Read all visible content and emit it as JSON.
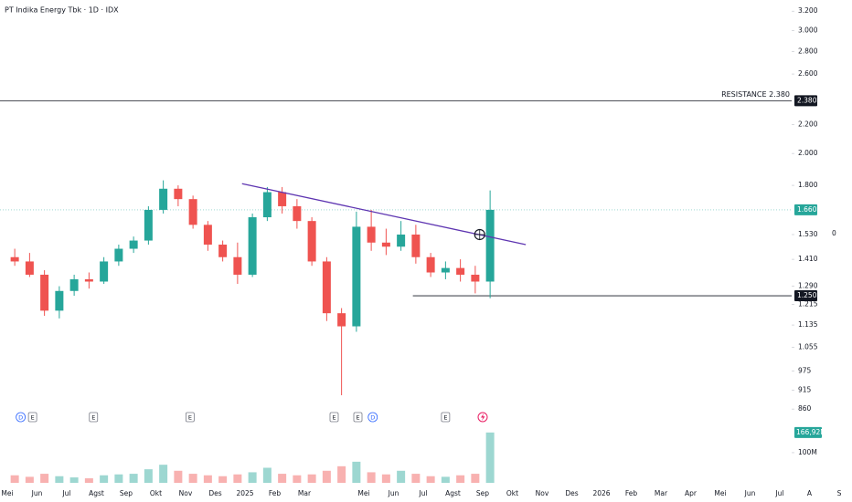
{
  "chart_data": {
    "type": "candlestick",
    "title": "PT Indika Energy Tbk · 1D · IDX",
    "categories": [
      "Mei",
      null,
      "Jun",
      null,
      "Jul",
      null,
      "Agst",
      null,
      "Sep",
      null,
      "Okt",
      null,
      "Nov",
      null,
      "Des",
      null,
      "2025",
      null,
      "Feb",
      null,
      "Mar",
      null,
      null,
      null,
      "Mei",
      null,
      "Jun",
      null,
      "Jul",
      null,
      "Agst",
      null,
      "Sep",
      null,
      "Okt",
      null,
      "Nov",
      null,
      "Des",
      null,
      "2026",
      null,
      "Feb",
      null,
      "Mar",
      null,
      "Apr",
      null,
      "Mei",
      null,
      "Jun",
      null,
      "Jul",
      null,
      "A",
      null,
      "S",
      null
    ],
    "open": [
      1420,
      1400,
      1340,
      1190,
      1270,
      1320,
      1310,
      1400,
      1460,
      1500,
      1660,
      1780,
      1720,
      1580,
      1480,
      1420,
      1340,
      1620,
      1760,
      1680,
      1600,
      1400,
      1180,
      1130,
      1570,
      1490,
      1470,
      1530,
      1420,
      1350,
      1370,
      1340,
      1310,
      null,
      null,
      null,
      null,
      null,
      null,
      null,
      null,
      null,
      null,
      null,
      null,
      null,
      null,
      null,
      null,
      null,
      null,
      null,
      null,
      null,
      null,
      null,
      null,
      null
    ],
    "high": [
      1460,
      1440,
      1360,
      1290,
      1340,
      1350,
      1420,
      1480,
      1520,
      1680,
      1830,
      1800,
      1740,
      1600,
      1500,
      1490,
      1640,
      1790,
      1790,
      1720,
      1620,
      1420,
      1200,
      1650,
      1660,
      1560,
      1600,
      1580,
      1440,
      1400,
      1410,
      1380,
      1770,
      null,
      null,
      null,
      null,
      null,
      null,
      null,
      null,
      null,
      null,
      null,
      null,
      null,
      null,
      null,
      null,
      null,
      null,
      null,
      null,
      null,
      null,
      null,
      null,
      null
    ],
    "low": [
      1380,
      1330,
      1170,
      1160,
      1250,
      1280,
      1300,
      1380,
      1440,
      1480,
      1640,
      1680,
      1560,
      1450,
      1400,
      1300,
      1330,
      1600,
      1640,
      1560,
      1380,
      1150,
      900,
      1110,
      1450,
      1430,
      1450,
      1390,
      1330,
      1320,
      1310,
      1260,
      1240,
      null,
      null,
      null,
      null,
      null,
      null,
      null,
      null,
      null,
      null,
      null,
      null,
      null,
      null,
      null,
      null,
      null,
      null,
      null,
      null,
      null,
      null,
      null,
      null,
      null
    ],
    "close": [
      1400,
      1340,
      1190,
      1270,
      1320,
      1310,
      1400,
      1460,
      1500,
      1660,
      1780,
      1720,
      1580,
      1480,
      1420,
      1340,
      1620,
      1760,
      1680,
      1600,
      1400,
      1180,
      1130,
      1570,
      1490,
      1470,
      1530,
      1420,
      1350,
      1370,
      1340,
      1310,
      1660,
      null,
      null,
      null,
      null,
      null,
      null,
      null,
      null,
      null,
      null,
      null,
      null,
      null,
      null,
      null,
      null,
      null,
      null,
      null,
      null,
      null,
      null,
      null,
      null,
      null
    ],
    "volume": [
      25000000,
      20000000,
      30000000,
      22000000,
      18000000,
      15000000,
      25000000,
      28000000,
      30000000,
      45000000,
      60000000,
      40000000,
      30000000,
      25000000,
      22000000,
      28000000,
      35000000,
      50000000,
      30000000,
      25000000,
      28000000,
      40000000,
      55000000,
      70000000,
      35000000,
      28000000,
      40000000,
      30000000,
      22000000,
      20000000,
      25000000,
      30000000,
      166920000,
      null,
      null,
      null,
      null,
      null,
      null,
      null,
      null,
      null,
      null,
      null,
      null,
      null,
      null,
      null,
      null,
      null,
      null,
      null,
      null,
      null,
      null,
      null,
      null,
      null
    ],
    "up_color": "#26a69a",
    "down_color": "#ef5350",
    "log_scale": true,
    "ylim": [
      850,
      3270
    ],
    "yticks": [
      {
        "value": 3200,
        "label": "3.200"
      },
      {
        "value": 3000,
        "label": "3.000"
      },
      {
        "value": 2800,
        "label": "2.800"
      },
      {
        "value": 2600,
        "label": "2.600"
      },
      {
        "value": 2200,
        "label": "2.200"
      },
      {
        "value": 2000,
        "label": "2.000"
      },
      {
        "value": 1800,
        "label": "1.800"
      },
      {
        "value": 1530,
        "label": "1.530"
      },
      {
        "value": 1410,
        "label": "1.410"
      },
      {
        "value": 1290,
        "label": "1.290"
      },
      {
        "value": 1215,
        "label": "1.215"
      },
      {
        "value": 1135,
        "label": "1.135"
      },
      {
        "value": 1055,
        "label": "1.055"
      },
      975,
      915,
      860
    ],
    "vlim": [
      0,
      230000000
    ],
    "vticks": [
      {
        "value": 100000000,
        "label": "100M"
      }
    ],
    "last_price": {
      "value": 1660,
      "label": "1.660"
    },
    "last_volume": {
      "value": 166920000,
      "label": "166,92M"
    },
    "resistance": {
      "value": 2380,
      "label": "2.380",
      "text": "RESISTANCE 2.380"
    },
    "support": {
      "value": 1250,
      "label": "1.250",
      "from": 27.3
    },
    "trendline": {
      "x": [
        15.8,
        34.9
      ],
      "y": [
        1810,
        1480
      ],
      "color": "#5e35b1"
    },
    "breakout": {
      "x": 31.8,
      "y": 1530
    },
    "events": [
      {
        "label": "D",
        "at": 0.9
      },
      {
        "label": "E",
        "at": 1.7
      },
      {
        "label": "E",
        "at": 5.8
      },
      {
        "label": "E",
        "at": 12.3
      },
      {
        "label": "E",
        "at": 22.0
      },
      {
        "label": "E",
        "at": 23.6
      },
      {
        "label": "D",
        "at": 24.6
      },
      {
        "label": "E",
        "at": 29.5
      }
    ],
    "right_label": "0"
  }
}
